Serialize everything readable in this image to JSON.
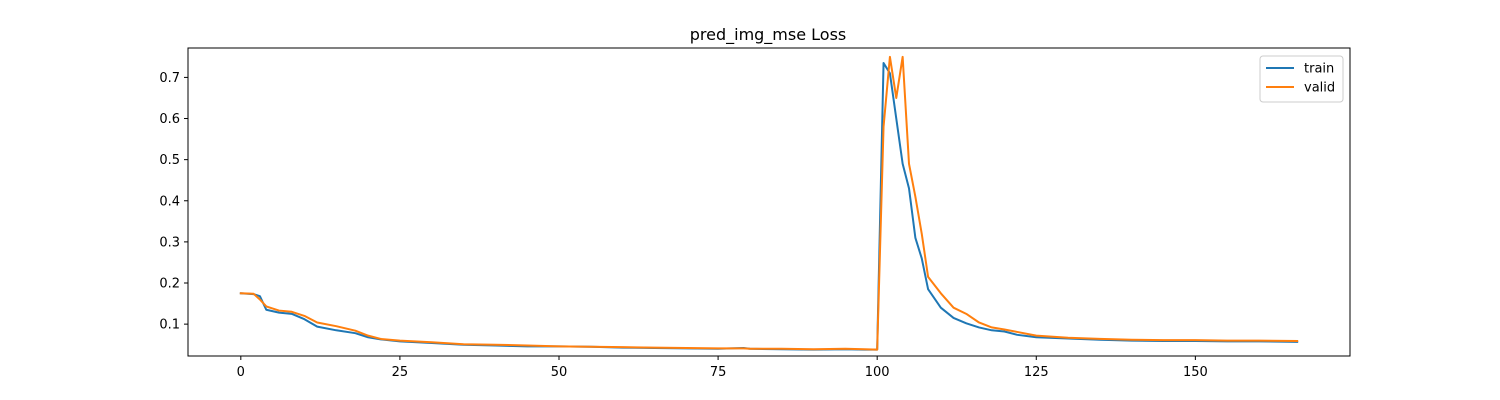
{
  "chart_data": {
    "type": "line",
    "title": "pred_img_mse Loss",
    "xlabel": "",
    "ylabel": "",
    "xlim": [
      -8.3,
      174.3
    ],
    "ylim": [
      0.0225,
      0.7715
    ],
    "xticks": [
      0,
      25,
      50,
      75,
      100,
      125,
      150
    ],
    "yticks": [
      0.1,
      0.2,
      0.3,
      0.4,
      0.5,
      0.6,
      0.7
    ],
    "legend_position": "top-right",
    "grid": false,
    "series": [
      {
        "name": "train",
        "color": "#1f77b4",
        "x": [
          0,
          2,
          3,
          4,
          6,
          8,
          10,
          12,
          15,
          18,
          20,
          22,
          25,
          30,
          35,
          40,
          45,
          50,
          55,
          60,
          65,
          70,
          75,
          79,
          80,
          85,
          90,
          95,
          98,
          100,
          101,
          102,
          103,
          104,
          105,
          106,
          107,
          108,
          110,
          112,
          114,
          116,
          118,
          120,
          122,
          125,
          130,
          135,
          140,
          145,
          150,
          155,
          160,
          166
        ],
        "y": [
          0.175,
          0.173,
          0.168,
          0.135,
          0.128,
          0.125,
          0.112,
          0.094,
          0.085,
          0.078,
          0.068,
          0.063,
          0.058,
          0.054,
          0.05,
          0.048,
          0.046,
          0.046,
          0.045,
          0.043,
          0.042,
          0.041,
          0.04,
          0.042,
          0.04,
          0.039,
          0.038,
          0.039,
          0.038,
          0.038,
          0.735,
          0.71,
          0.6,
          0.49,
          0.43,
          0.31,
          0.26,
          0.185,
          0.14,
          0.115,
          0.102,
          0.092,
          0.085,
          0.082,
          0.074,
          0.068,
          0.065,
          0.062,
          0.06,
          0.059,
          0.059,
          0.058,
          0.058,
          0.057
        ]
      },
      {
        "name": "valid",
        "color": "#ff7f0e",
        "x": [
          0,
          2,
          3,
          4,
          6,
          8,
          10,
          12,
          15,
          18,
          20,
          22,
          25,
          30,
          35,
          40,
          45,
          50,
          55,
          60,
          65,
          70,
          75,
          79,
          80,
          85,
          90,
          95,
          98,
          100,
          101,
          102,
          103,
          104,
          105,
          106,
          107,
          108,
          110,
          112,
          114,
          116,
          118,
          120,
          122,
          125,
          130,
          135,
          140,
          145,
          150,
          155,
          160,
          166
        ],
        "y": [
          0.175,
          0.174,
          0.16,
          0.143,
          0.133,
          0.13,
          0.12,
          0.104,
          0.095,
          0.084,
          0.072,
          0.064,
          0.06,
          0.056,
          0.051,
          0.05,
          0.048,
          0.046,
          0.045,
          0.044,
          0.043,
          0.042,
          0.041,
          0.041,
          0.04,
          0.04,
          0.039,
          0.04,
          0.039,
          0.038,
          0.58,
          0.75,
          0.65,
          0.75,
          0.49,
          0.41,
          0.32,
          0.215,
          0.175,
          0.14,
          0.125,
          0.104,
          0.092,
          0.087,
          0.081,
          0.072,
          0.067,
          0.064,
          0.062,
          0.061,
          0.061,
          0.06,
          0.06,
          0.059
        ]
      }
    ]
  }
}
